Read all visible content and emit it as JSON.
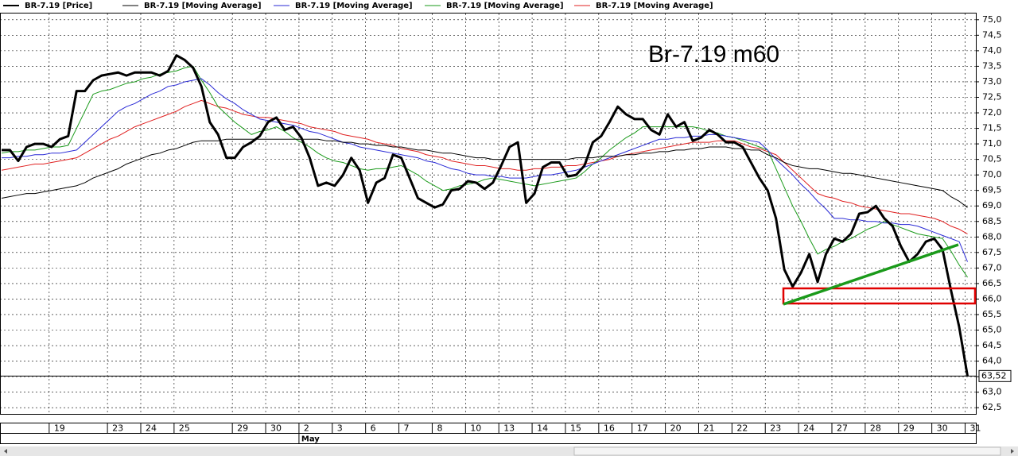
{
  "chart_data": {
    "type": "line",
    "annotation": "Br-7.19 m60",
    "categories": [
      null,
      null,
      null,
      null,
      null,
      null,
      "19",
      null,
      null,
      null,
      null,
      null,
      null,
      "23",
      null,
      null,
      null,
      "24",
      null,
      null,
      null,
      "25",
      null,
      null,
      null,
      null,
      null,
      null,
      "29",
      null,
      null,
      null,
      "30",
      null,
      null,
      null,
      "2",
      null,
      null,
      null,
      "3",
      null,
      null,
      null,
      "6",
      null,
      null,
      null,
      "7",
      null,
      null,
      null,
      "8",
      null,
      null,
      null,
      "10",
      null,
      null,
      null,
      "13",
      null,
      null,
      null,
      "14",
      null,
      null,
      null,
      "15",
      null,
      null,
      null,
      "16",
      null,
      null,
      null,
      "17",
      null,
      null,
      null,
      "20",
      null,
      null,
      null,
      "21",
      null,
      null,
      null,
      "22",
      null,
      null,
      null,
      "23",
      null,
      null,
      null,
      "24",
      null,
      null,
      null,
      "27",
      null,
      null,
      null,
      "28",
      null,
      null,
      null,
      "29",
      null,
      null,
      null,
      "30",
      null,
      null,
      null,
      "31"
    ],
    "categories2": [
      null,
      null,
      null,
      null,
      null,
      null,
      null,
      null,
      null,
      null,
      null,
      null,
      null,
      null,
      null,
      null,
      null,
      null,
      null,
      null,
      null,
      null,
      null,
      null,
      null,
      null,
      null,
      null,
      null,
      null,
      null,
      null,
      null,
      null,
      null,
      null,
      "May",
      null,
      null,
      null,
      null,
      null,
      null,
      null,
      null,
      null,
      null,
      null,
      null,
      null,
      null,
      null,
      null,
      null,
      null,
      null,
      null,
      null,
      null,
      null,
      null,
      null,
      null,
      null,
      null,
      null,
      null,
      null,
      null,
      null,
      null,
      null,
      null,
      null,
      null,
      null,
      null,
      null,
      null,
      null,
      null,
      null,
      null,
      null,
      null,
      null,
      null,
      null,
      null,
      null,
      null,
      null,
      null,
      null,
      null,
      null,
      null,
      null,
      null,
      null,
      null,
      null,
      null,
      null,
      null,
      null,
      null,
      null,
      null,
      null,
      null,
      null,
      null,
      null,
      null,
      null,
      null
    ],
    "series": [
      {
        "name": "BR-7.19 [Price]",
        "color": "#000000",
        "width": 3,
        "values": [
          70.8,
          70.8,
          70.45,
          70.9,
          71.0,
          71.0,
          70.9,
          71.15,
          71.25,
          72.7,
          72.7,
          73.05,
          73.2,
          73.25,
          73.3,
          73.2,
          73.3,
          73.3,
          73.3,
          73.2,
          73.35,
          73.85,
          73.7,
          73.45,
          72.85,
          71.7,
          71.3,
          70.55,
          70.55,
          70.9,
          71.05,
          71.25,
          71.7,
          71.85,
          71.45,
          71.55,
          71.2,
          70.55,
          69.65,
          69.75,
          69.65,
          70.0,
          70.55,
          70.15,
          69.1,
          69.75,
          69.9,
          70.65,
          70.55,
          69.9,
          69.25,
          69.1,
          68.95,
          69.05,
          69.5,
          69.55,
          69.8,
          69.75,
          69.55,
          69.75,
          70.3,
          70.9,
          71.05,
          69.1,
          69.4,
          70.25,
          70.4,
          70.4,
          69.95,
          70.0,
          70.3,
          71.05,
          71.25,
          71.7,
          72.2,
          71.95,
          71.8,
          71.8,
          71.45,
          71.3,
          71.95,
          71.55,
          71.7,
          71.1,
          71.2,
          71.45,
          71.3,
          71.05,
          71.05,
          70.9,
          70.4,
          69.9,
          69.5,
          68.6,
          66.95,
          66.4,
          66.85,
          67.45,
          66.55,
          67.45,
          67.95,
          67.85,
          68.1,
          68.75,
          68.8,
          69.0,
          68.6,
          68.35,
          67.7,
          67.2,
          67.45,
          67.85,
          67.95,
          67.6,
          66.3,
          65.1,
          63.52
        ]
      },
      {
        "name": "BR-7.19 [Moving Average]",
        "color": "#000000",
        "width": 1,
        "values": [
          69.25,
          69.3,
          69.35,
          69.4,
          69.4,
          69.45,
          69.5,
          69.55,
          69.6,
          69.65,
          69.75,
          69.9,
          70.0,
          70.1,
          70.2,
          70.35,
          70.45,
          70.55,
          70.65,
          70.7,
          70.8,
          70.85,
          70.95,
          71.05,
          71.1,
          71.1,
          71.1,
          71.15,
          71.15,
          71.15,
          71.15,
          71.15,
          71.15,
          71.15,
          71.15,
          71.15,
          71.15,
          71.15,
          71.15,
          71.1,
          71.1,
          71.05,
          71.05,
          71.0,
          71.0,
          70.95,
          70.95,
          70.9,
          70.9,
          70.85,
          70.8,
          70.8,
          70.75,
          70.7,
          70.7,
          70.65,
          70.6,
          70.55,
          70.55,
          70.5,
          70.5,
          70.5,
          70.5,
          70.5,
          70.5,
          70.5,
          70.5,
          70.5,
          70.5,
          70.55,
          70.55,
          70.55,
          70.6,
          70.6,
          70.6,
          70.65,
          70.65,
          70.7,
          70.7,
          70.75,
          70.75,
          70.8,
          70.8,
          70.85,
          70.85,
          70.9,
          70.9,
          70.9,
          70.85,
          70.85,
          70.8,
          70.8,
          70.65,
          70.55,
          70.4,
          70.3,
          70.25,
          70.2,
          70.2,
          70.15,
          70.1,
          70.05,
          70.05,
          70.0,
          69.95,
          69.9,
          69.85,
          69.8,
          69.75,
          69.7,
          69.65,
          69.6,
          69.55,
          69.5,
          69.3,
          69.15,
          68.95
        ]
      },
      {
        "name": "BR-7.19 [Moving Average]",
        "color": "#2a2ad6",
        "width": 1,
        "values": [
          70.55,
          70.55,
          70.6,
          70.6,
          70.65,
          70.65,
          70.7,
          70.7,
          70.75,
          70.8,
          71.05,
          71.3,
          71.55,
          71.8,
          72.05,
          72.2,
          72.3,
          72.45,
          72.6,
          72.7,
          72.85,
          72.9,
          73.0,
          73.05,
          73.1,
          72.9,
          72.65,
          72.45,
          72.3,
          72.1,
          71.95,
          71.8,
          71.75,
          71.7,
          71.65,
          71.6,
          71.5,
          71.4,
          71.35,
          71.25,
          71.15,
          71.05,
          71.0,
          70.9,
          70.85,
          70.8,
          70.75,
          70.7,
          70.65,
          70.6,
          70.55,
          70.45,
          70.4,
          70.3,
          70.2,
          70.15,
          70.05,
          70.0,
          70.0,
          69.95,
          69.95,
          69.9,
          69.9,
          69.9,
          69.95,
          70.0,
          70.0,
          70.05,
          70.1,
          70.15,
          70.25,
          70.35,
          70.45,
          70.55,
          70.65,
          70.75,
          70.85,
          70.95,
          71.05,
          71.15,
          71.15,
          71.2,
          71.2,
          71.25,
          71.25,
          71.3,
          71.3,
          71.25,
          71.2,
          71.15,
          71.1,
          71.05,
          70.8,
          70.5,
          70.25,
          70.0,
          69.7,
          69.45,
          69.15,
          68.9,
          68.6,
          68.6,
          68.55,
          68.55,
          68.5,
          68.5,
          68.45,
          68.45,
          68.4,
          68.4,
          68.35,
          68.25,
          68.15,
          68.05,
          67.95,
          67.85,
          67.2
        ]
      },
      {
        "name": "BR-7.19 [Moving Average]",
        "color": "#1a9a1a",
        "width": 1,
        "values": [
          70.7,
          70.75,
          70.75,
          70.8,
          70.8,
          70.85,
          70.9,
          70.9,
          70.95,
          71.5,
          72.05,
          72.6,
          72.7,
          72.75,
          72.85,
          72.95,
          73.0,
          73.1,
          73.15,
          73.25,
          73.3,
          73.35,
          73.45,
          73.5,
          73.05,
          72.65,
          72.2,
          71.95,
          71.7,
          71.5,
          71.3,
          71.4,
          71.45,
          71.55,
          71.4,
          71.2,
          71.05,
          70.9,
          70.7,
          70.55,
          70.45,
          70.4,
          70.3,
          70.2,
          70.15,
          70.2,
          70.2,
          70.25,
          70.3,
          70.15,
          70.0,
          69.8,
          69.65,
          69.5,
          69.55,
          69.65,
          69.7,
          69.75,
          69.85,
          69.9,
          69.85,
          69.8,
          69.75,
          69.7,
          69.65,
          69.7,
          69.75,
          69.8,
          69.85,
          69.9,
          70.1,
          70.35,
          70.55,
          70.8,
          71.0,
          71.2,
          71.35,
          71.55,
          71.55,
          71.55,
          71.55,
          71.55,
          71.55,
          71.55,
          71.5,
          71.4,
          71.35,
          71.25,
          71.2,
          71.1,
          71.0,
          70.9,
          70.8,
          70.2,
          69.6,
          69.0,
          68.5,
          67.95,
          67.45,
          67.6,
          67.7,
          67.85,
          67.95,
          68.1,
          68.25,
          68.35,
          68.5,
          68.4,
          68.3,
          68.2,
          68.1,
          68.05,
          68.0,
          67.95,
          67.55,
          67.1,
          66.7
        ]
      },
      {
        "name": "BR-7.19 [Moving Average]",
        "color": "#e02020",
        "width": 1,
        "values": [
          70.15,
          70.2,
          70.25,
          70.3,
          70.35,
          70.35,
          70.4,
          70.45,
          70.5,
          70.55,
          70.7,
          70.85,
          71.0,
          71.15,
          71.25,
          71.4,
          71.55,
          71.65,
          71.75,
          71.85,
          71.95,
          72.05,
          72.2,
          72.3,
          72.4,
          72.3,
          72.2,
          72.15,
          72.05,
          71.95,
          71.9,
          71.85,
          71.85,
          71.8,
          71.75,
          71.7,
          71.65,
          71.55,
          71.5,
          71.45,
          71.4,
          71.3,
          71.25,
          71.2,
          71.15,
          71.05,
          71.0,
          70.95,
          70.85,
          70.8,
          70.75,
          70.65,
          70.6,
          70.55,
          70.45,
          70.4,
          70.35,
          70.3,
          70.3,
          70.25,
          70.2,
          70.2,
          70.15,
          70.15,
          70.2,
          70.2,
          70.25,
          70.25,
          70.3,
          70.3,
          70.35,
          70.4,
          70.45,
          70.5,
          70.6,
          70.65,
          70.7,
          70.75,
          70.8,
          70.85,
          70.9,
          70.95,
          71.0,
          71.05,
          71.05,
          71.05,
          71.1,
          71.1,
          71.1,
          71.0,
          70.9,
          70.85,
          70.75,
          70.65,
          70.4,
          70.15,
          69.9,
          69.65,
          69.4,
          69.3,
          69.25,
          69.15,
          69.1,
          69.0,
          68.95,
          68.9,
          68.85,
          68.8,
          68.75,
          68.75,
          68.7,
          68.65,
          68.6,
          68.5,
          68.35,
          68.25,
          68.1
        ]
      }
    ],
    "last_price": {
      "value": 63.52,
      "label": "63,52"
    },
    "ylim": [
      62.3,
      75.2
    ],
    "yticks": [
      {
        "value": 62.5,
        "label": "62,5"
      },
      {
        "value": 63,
        "label": "63,0"
      },
      {
        "value": 63.5,
        "label": "63,5"
      },
      {
        "value": 64,
        "label": "64,0"
      },
      {
        "value": 64.5,
        "label": "64,5"
      },
      {
        "value": 65,
        "label": "65,0"
      },
      {
        "value": 65.5,
        "label": "65,5"
      },
      {
        "value": 66,
        "label": "66,0"
      },
      {
        "value": 66.5,
        "label": "66,5"
      },
      {
        "value": 67,
        "label": "67,0"
      },
      {
        "value": 67.5,
        "label": "67,5"
      },
      {
        "value": 68,
        "label": "68,0"
      },
      {
        "value": 68.5,
        "label": "68,5"
      },
      {
        "value": 69,
        "label": "69,0"
      },
      {
        "value": 69.5,
        "label": "69,5"
      },
      {
        "value": 70,
        "label": "70,0"
      },
      {
        "value": 70.5,
        "label": "70,5"
      },
      {
        "value": 71,
        "label": "71,0"
      },
      {
        "value": 71.5,
        "label": "71,5"
      },
      {
        "value": 72,
        "label": "72,0"
      },
      {
        "value": 72.5,
        "label": "72,5"
      },
      {
        "value": 73,
        "label": "73,0"
      },
      {
        "value": 73.5,
        "label": "73,5"
      },
      {
        "value": 74,
        "label": "74,0"
      },
      {
        "value": 74.5,
        "label": "74,5"
      },
      {
        "value": 75,
        "label": "75,0"
      }
    ],
    "grid": true
  }
}
